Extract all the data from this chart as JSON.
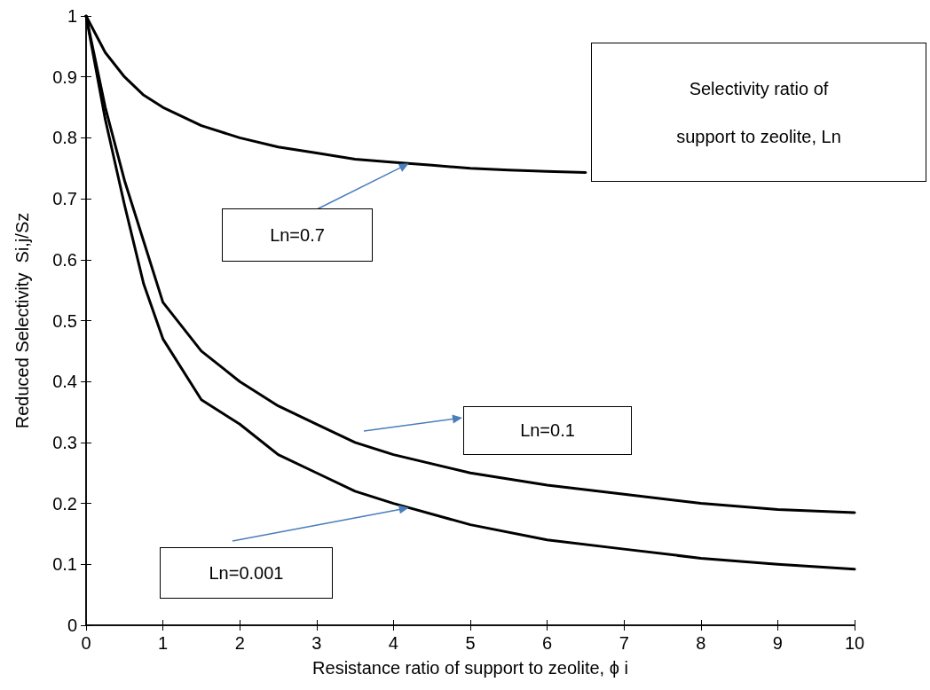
{
  "chart_data": {
    "type": "line",
    "xlabel": "Resistance ratio of support to zeolite, ϕ i",
    "ylabel": "Reduced Selectivity  Si,j/Sz",
    "xlim": [
      0,
      10
    ],
    "xticks": [
      0,
      1,
      2,
      3,
      4,
      5,
      6,
      7,
      8,
      9,
      10
    ],
    "ylim": [
      0,
      1
    ],
    "yticks": [
      0,
      0.1,
      0.2,
      0.3,
      0.4,
      0.5,
      0.6,
      0.7,
      0.8,
      0.9,
      1
    ],
    "grid": false,
    "marker": "none",
    "line_style": "solid",
    "series": [
      {
        "color": "#000000",
        "x": [
          0,
          0.25,
          0.5,
          0.75,
          1,
          1.5,
          2,
          2.5,
          3,
          3.5,
          4,
          4.5,
          5,
          5.5,
          6,
          6.5
        ],
        "values": [
          1,
          0.94,
          0.9,
          0.87,
          0.85,
          0.82,
          0.8,
          0.785,
          0.775,
          0.765,
          0.76,
          0.755,
          0.75,
          0.747,
          0.745,
          0.743
        ]
      },
      {
        "color": "#000000",
        "x": [
          0,
          0.25,
          0.5,
          0.75,
          1,
          1.5,
          2,
          2.5,
          3,
          3.5,
          4,
          5,
          6,
          7,
          8,
          9,
          10
        ],
        "values": [
          1,
          0.85,
          0.73,
          0.63,
          0.53,
          0.45,
          0.4,
          0.36,
          0.33,
          0.3,
          0.28,
          0.25,
          0.23,
          0.215,
          0.2,
          0.19,
          0.185
        ]
      },
      {
        "color": "#000000",
        "x": [
          0,
          0.25,
          0.5,
          0.75,
          1,
          1.5,
          2,
          2.5,
          3,
          3.5,
          4,
          5,
          6,
          7,
          8,
          9,
          10
        ],
        "values": [
          1,
          0.83,
          0.69,
          0.56,
          0.47,
          0.37,
          0.33,
          0.28,
          0.25,
          0.22,
          0.2,
          0.165,
          0.14,
          0.125,
          0.11,
          0.1,
          0.092
        ]
      }
    ],
    "annotations": [
      "Selectivity ratio of support to zeolite, Ln",
      {
        "text": "Ln=0.7",
        "x": 4.2,
        "y": 0.758
      },
      "Ln=0.1",
      {
        "text": "Ln=0.001",
        "x": 4.2,
        "y": 0.193
      }
    ]
  }
}
